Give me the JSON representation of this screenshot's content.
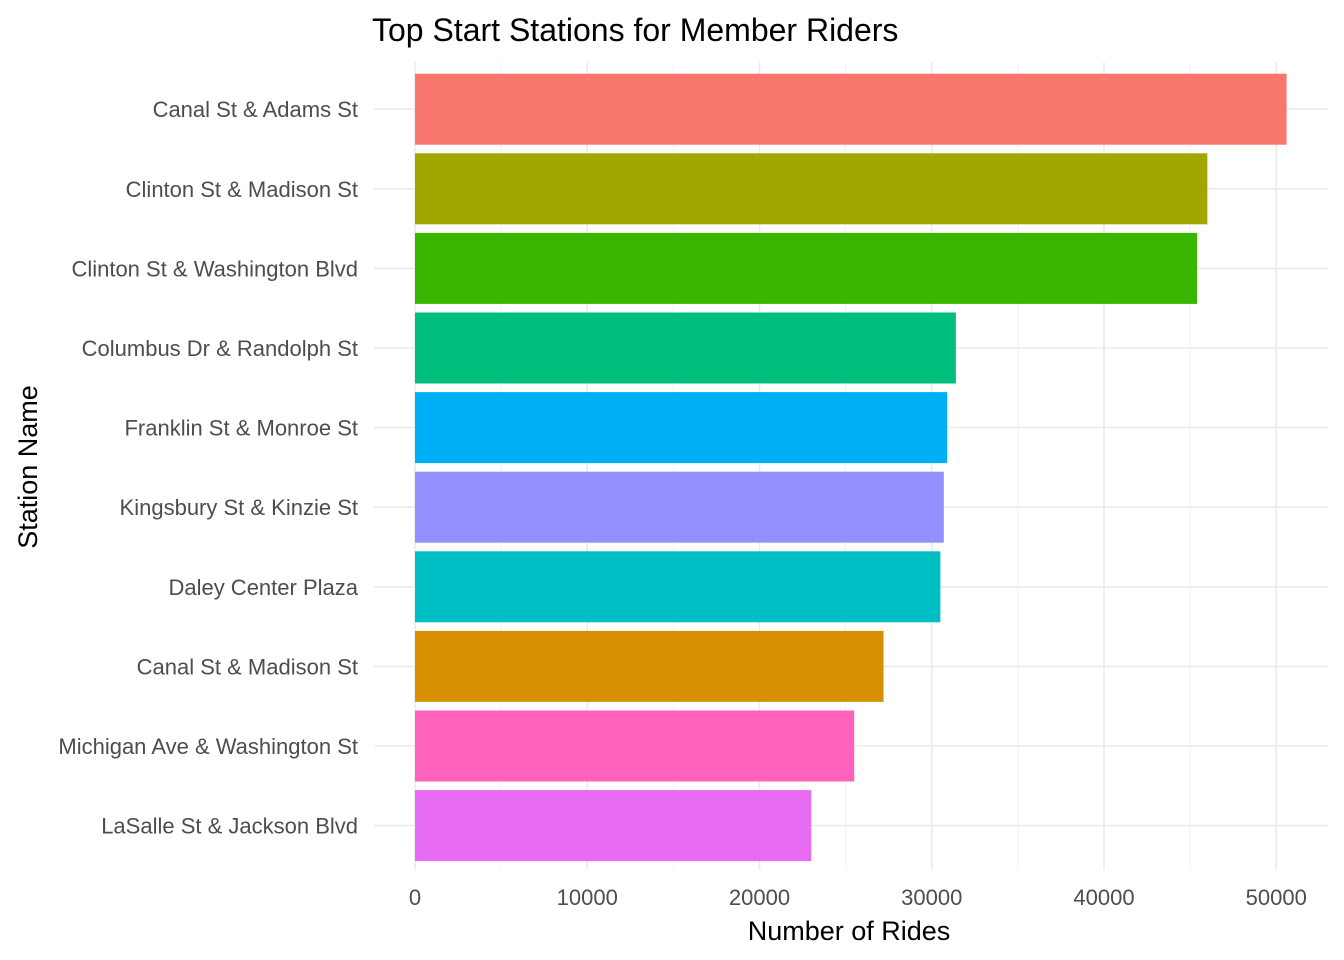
{
  "chart_data": {
    "type": "bar",
    "orientation": "horizontal",
    "title": "Top Start Stations for Member Riders",
    "xlabel": "Number of Rides",
    "ylabel": "Station Name",
    "xlim": [
      0,
      53000
    ],
    "x_ticks": [
      0,
      10000,
      20000,
      30000,
      40000,
      50000
    ],
    "x_tick_labels": [
      "0",
      "10000",
      "20000",
      "30000",
      "40000",
      "50000"
    ],
    "grid": true,
    "legend": "none",
    "categories": [
      "Canal St & Adams St",
      "Clinton St & Madison St",
      "Clinton St & Washington Blvd",
      "Columbus Dr & Randolph St",
      "Franklin St & Monroe St",
      "Kingsbury St & Kinzie St",
      "Daley Center Plaza",
      "Canal St & Madison St",
      "Michigan Ave & Washington St",
      "LaSalle St & Jackson Blvd"
    ],
    "values": [
      50600,
      46000,
      45400,
      31400,
      30900,
      30700,
      30500,
      27200,
      25500,
      23000
    ],
    "colors": [
      "#F8766D",
      "#A3A500",
      "#39B600",
      "#00BF7D",
      "#00B0F6",
      "#9590FF",
      "#00BFC4",
      "#D89000",
      "#FF62BC",
      "#E76BF3"
    ]
  }
}
